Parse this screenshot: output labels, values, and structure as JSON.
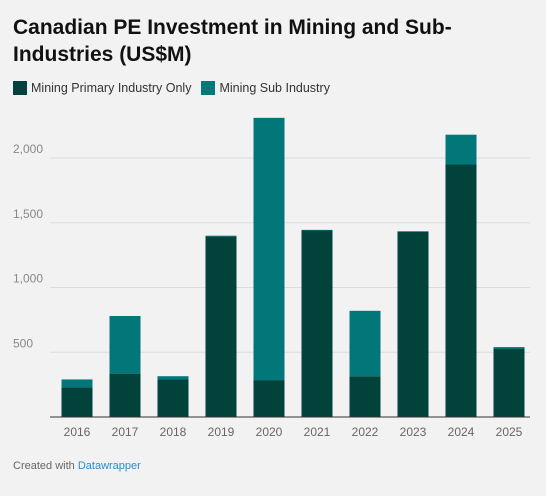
{
  "title": "Canadian PE Investment in Mining and Sub-Industries (US$M)",
  "legend": [
    {
      "label": "Mining Primary Industry Only",
      "color": "#02423d"
    },
    {
      "label": "Mining Sub Industry",
      "color": "#02777a"
    }
  ],
  "credit": {
    "prefix": "Created with",
    "link": "Datawrapper"
  },
  "chart_data": {
    "type": "bar",
    "stacked": true,
    "categories": [
      "2016",
      "2017",
      "2018",
      "2019",
      "2020",
      "2021",
      "2022",
      "2023",
      "2024",
      "2025"
    ],
    "series": [
      {
        "name": "Mining Primary Industry Only",
        "color": "#02423d",
        "values": [
          230,
          335,
          290,
          1395,
          285,
          1440,
          315,
          1430,
          1950,
          525
        ]
      },
      {
        "name": "Mining Sub Industry",
        "color": "#02777a",
        "values": [
          60,
          445,
          25,
          5,
          2025,
          5,
          505,
          5,
          230,
          15
        ]
      }
    ],
    "yticks": [
      500,
      1000,
      1500,
      2000
    ],
    "ytick_labels": [
      "500",
      "1,000",
      "1,500",
      "2,000"
    ],
    "ylim": [
      0,
      2300
    ],
    "grid": true,
    "legend_position": "top-left"
  }
}
